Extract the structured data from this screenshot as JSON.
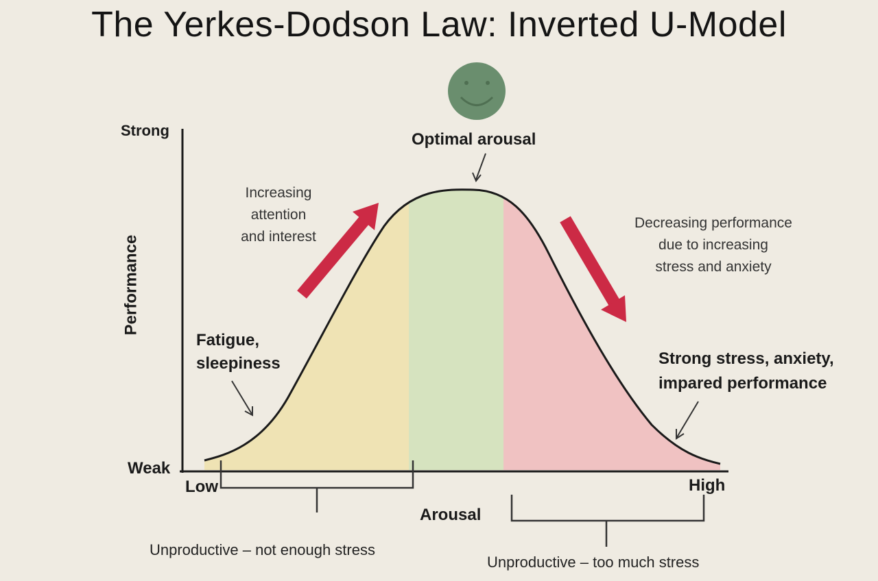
{
  "title": "The Yerkes-Dodson Law: Inverted U-Model",
  "axes": {
    "y_label": "Performance",
    "y_top": "Strong",
    "y_bottom": "Weak",
    "x_label": "Arousal",
    "x_left": "Low",
    "x_right": "High"
  },
  "annotations": {
    "optimal": "Optimal arousal",
    "fatigue_line1": "Fatigue,",
    "fatigue_line2": "sleepiness",
    "increasing_line1": "Increasing",
    "increasing_line2": "attention",
    "increasing_line3": "and interest",
    "decreasing_line1": "Decreasing performance",
    "decreasing_line2": "due to increasing",
    "decreasing_line3": "stress and anxiety",
    "strong_stress_line1": "Strong stress, anxiety,",
    "strong_stress_line2": "impared performance",
    "unproductive_low": "Unproductive – not enough stress",
    "unproductive_high": "Unproductive – too much stress"
  },
  "colors": {
    "background": "#efebe2",
    "zone_low": "#efe3b4",
    "zone_optimal": "#d6e3bf",
    "zone_high": "#f0c2c2",
    "arrow": "#cc2a45",
    "smiley": "#6a8e6e",
    "curve": "#1a1a1a"
  },
  "icons": {
    "smiley": "smiley-face-icon"
  }
}
